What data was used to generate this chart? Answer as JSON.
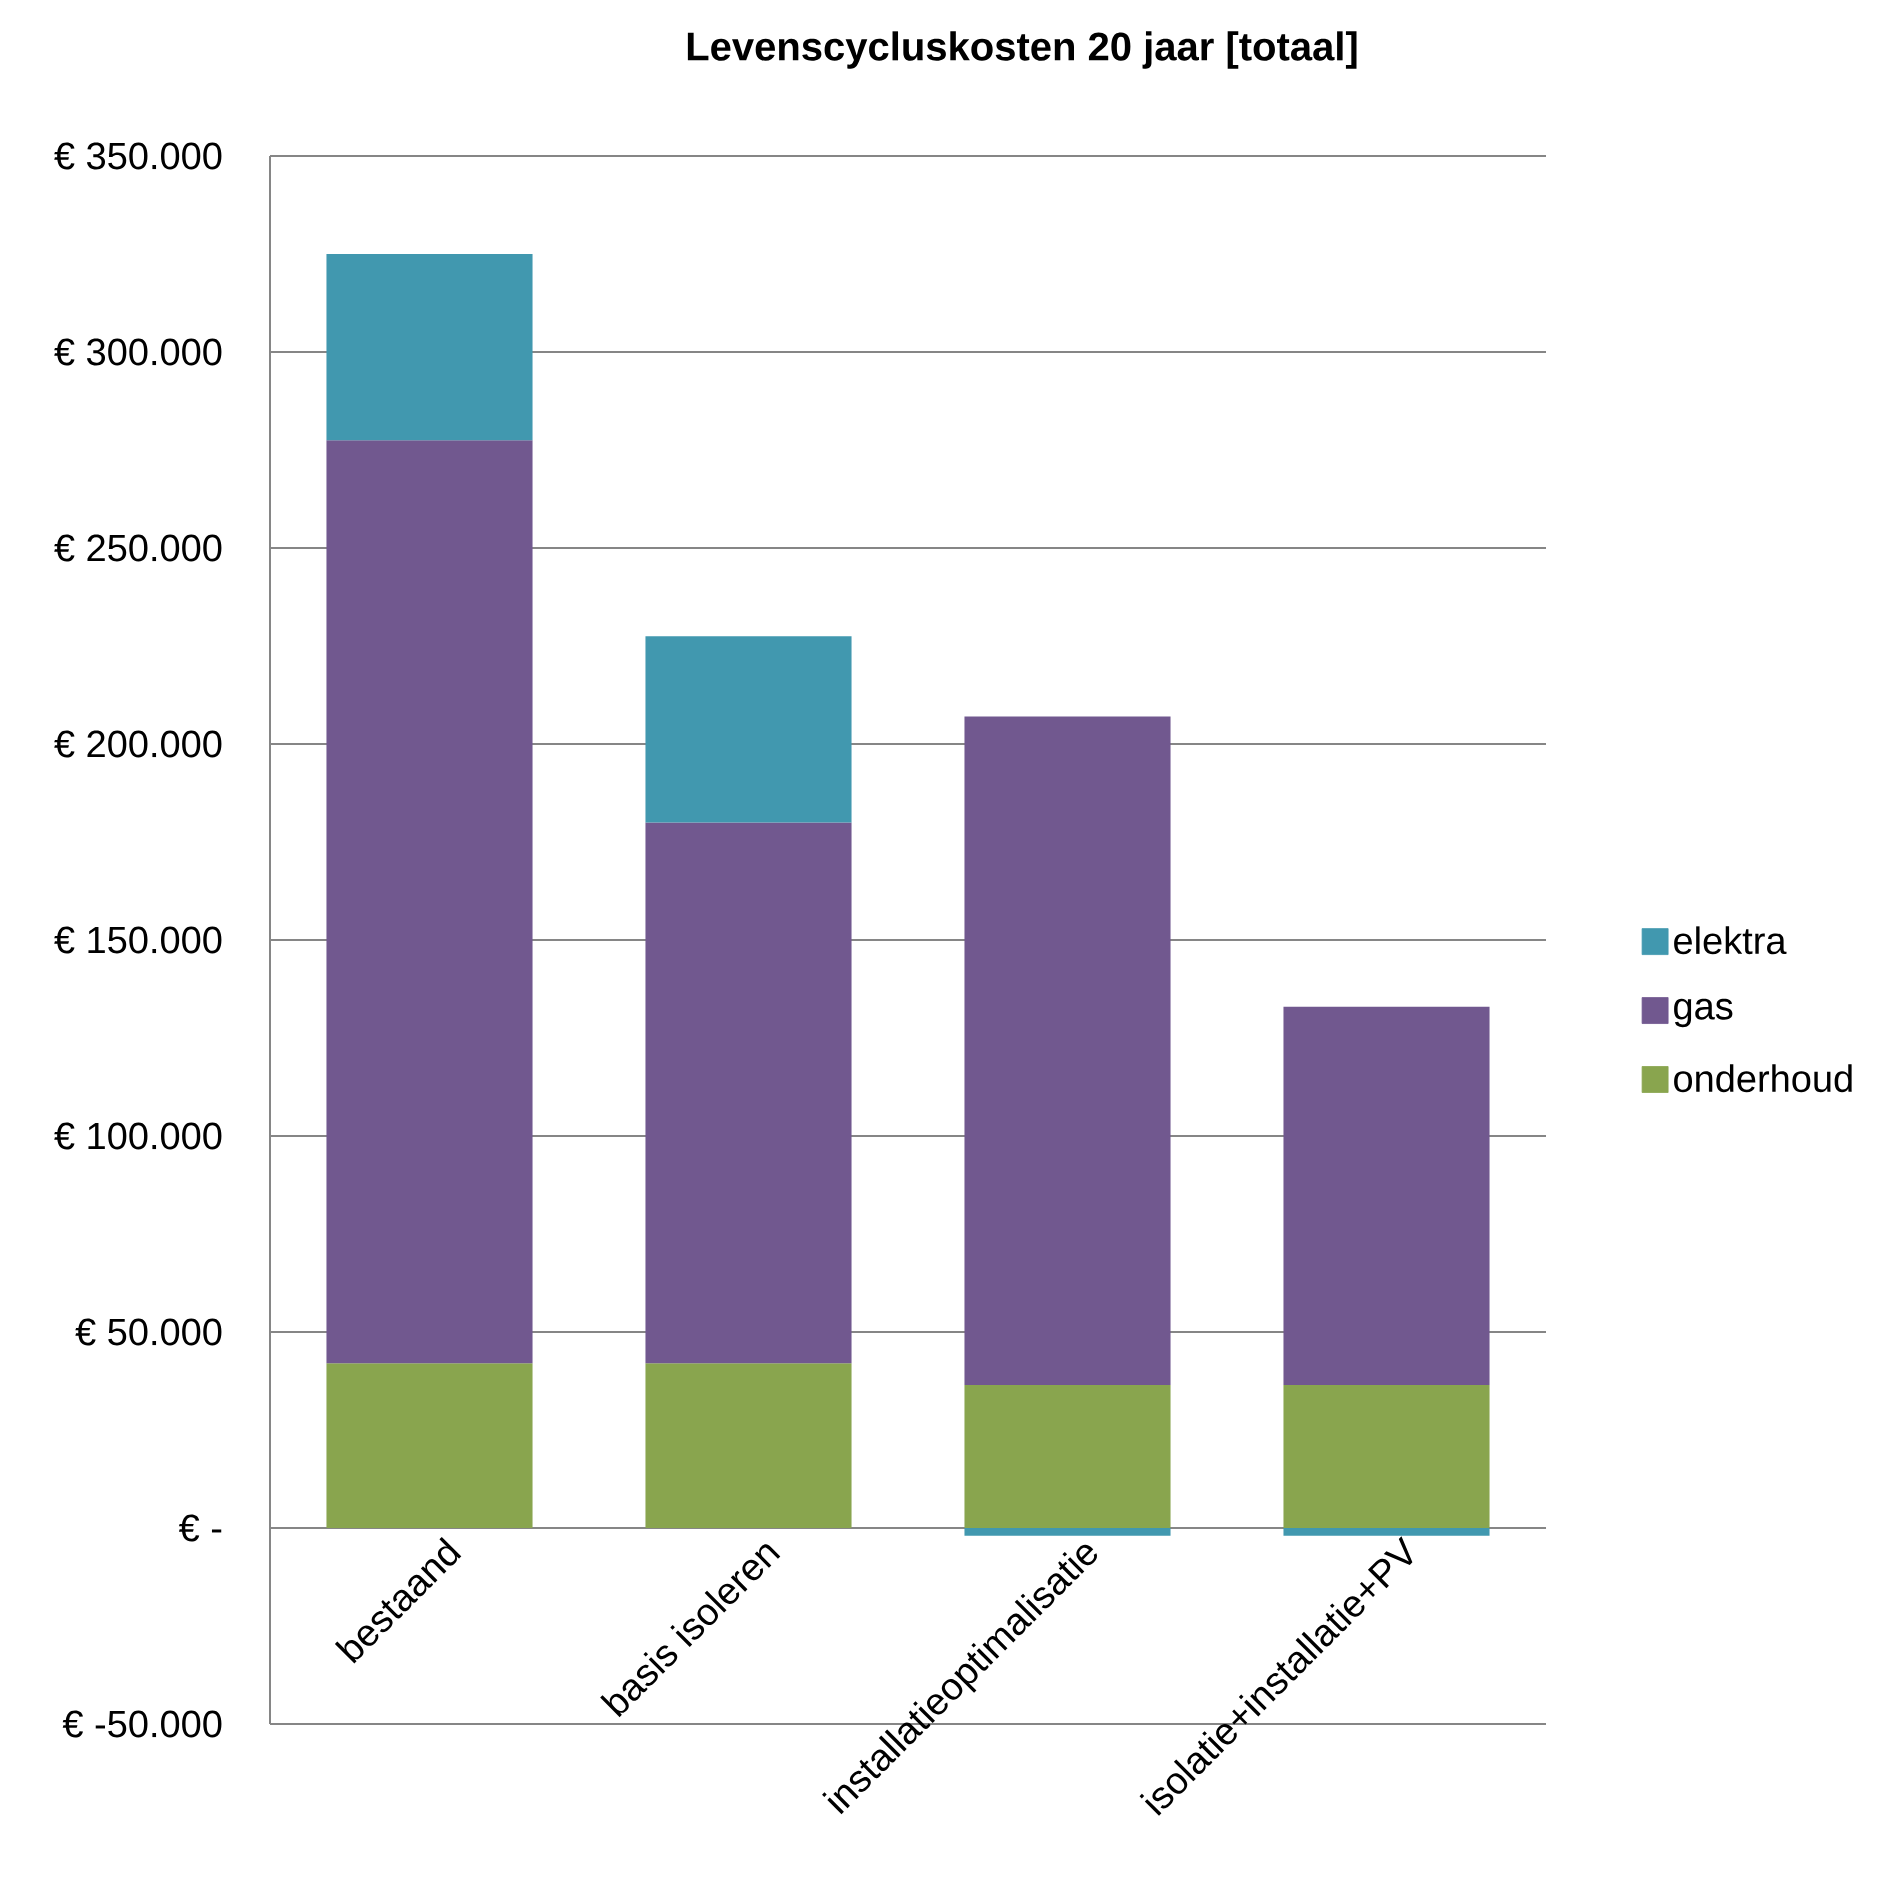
{
  "chart_data": {
    "type": "bar",
    "title": "Levenscycluskosten 20 jaar [totaal]",
    "categories": [
      "bestaand",
      "basis isoleren",
      "installatieoptimalisatie",
      "isolatie+installatie+PV"
    ],
    "stacked": true,
    "series": [
      {
        "name": "onderhoud",
        "color": "#89a54e",
        "values": [
          42000,
          42000,
          36500,
          36500
        ]
      },
      {
        "name": "gas",
        "color": "#71588f",
        "values": [
          235500,
          138000,
          170500,
          96500
        ]
      },
      {
        "name": "elektra",
        "color": "#4198af",
        "values": [
          47500,
          47500,
          -2000,
          -2000
        ]
      }
    ],
    "ylim": [
      -50000,
      350000
    ],
    "yticks": [
      {
        "value": -50000,
        "label": "€ -50.000"
      },
      {
        "value": 0,
        "label": "€ -"
      },
      {
        "value": 50000,
        "label": "€ 50.000"
      },
      {
        "value": 100000,
        "label": "€ 100.000"
      },
      {
        "value": 150000,
        "label": "€ 150.000"
      },
      {
        "value": 200000,
        "label": "€ 200.000"
      },
      {
        "value": 250000,
        "label": "€ 250.000"
      },
      {
        "value": 300000,
        "label": "€ 300.000"
      },
      {
        "value": 350000,
        "label": "€ 350.000"
      }
    ],
    "grid": "y",
    "legend": "right"
  }
}
